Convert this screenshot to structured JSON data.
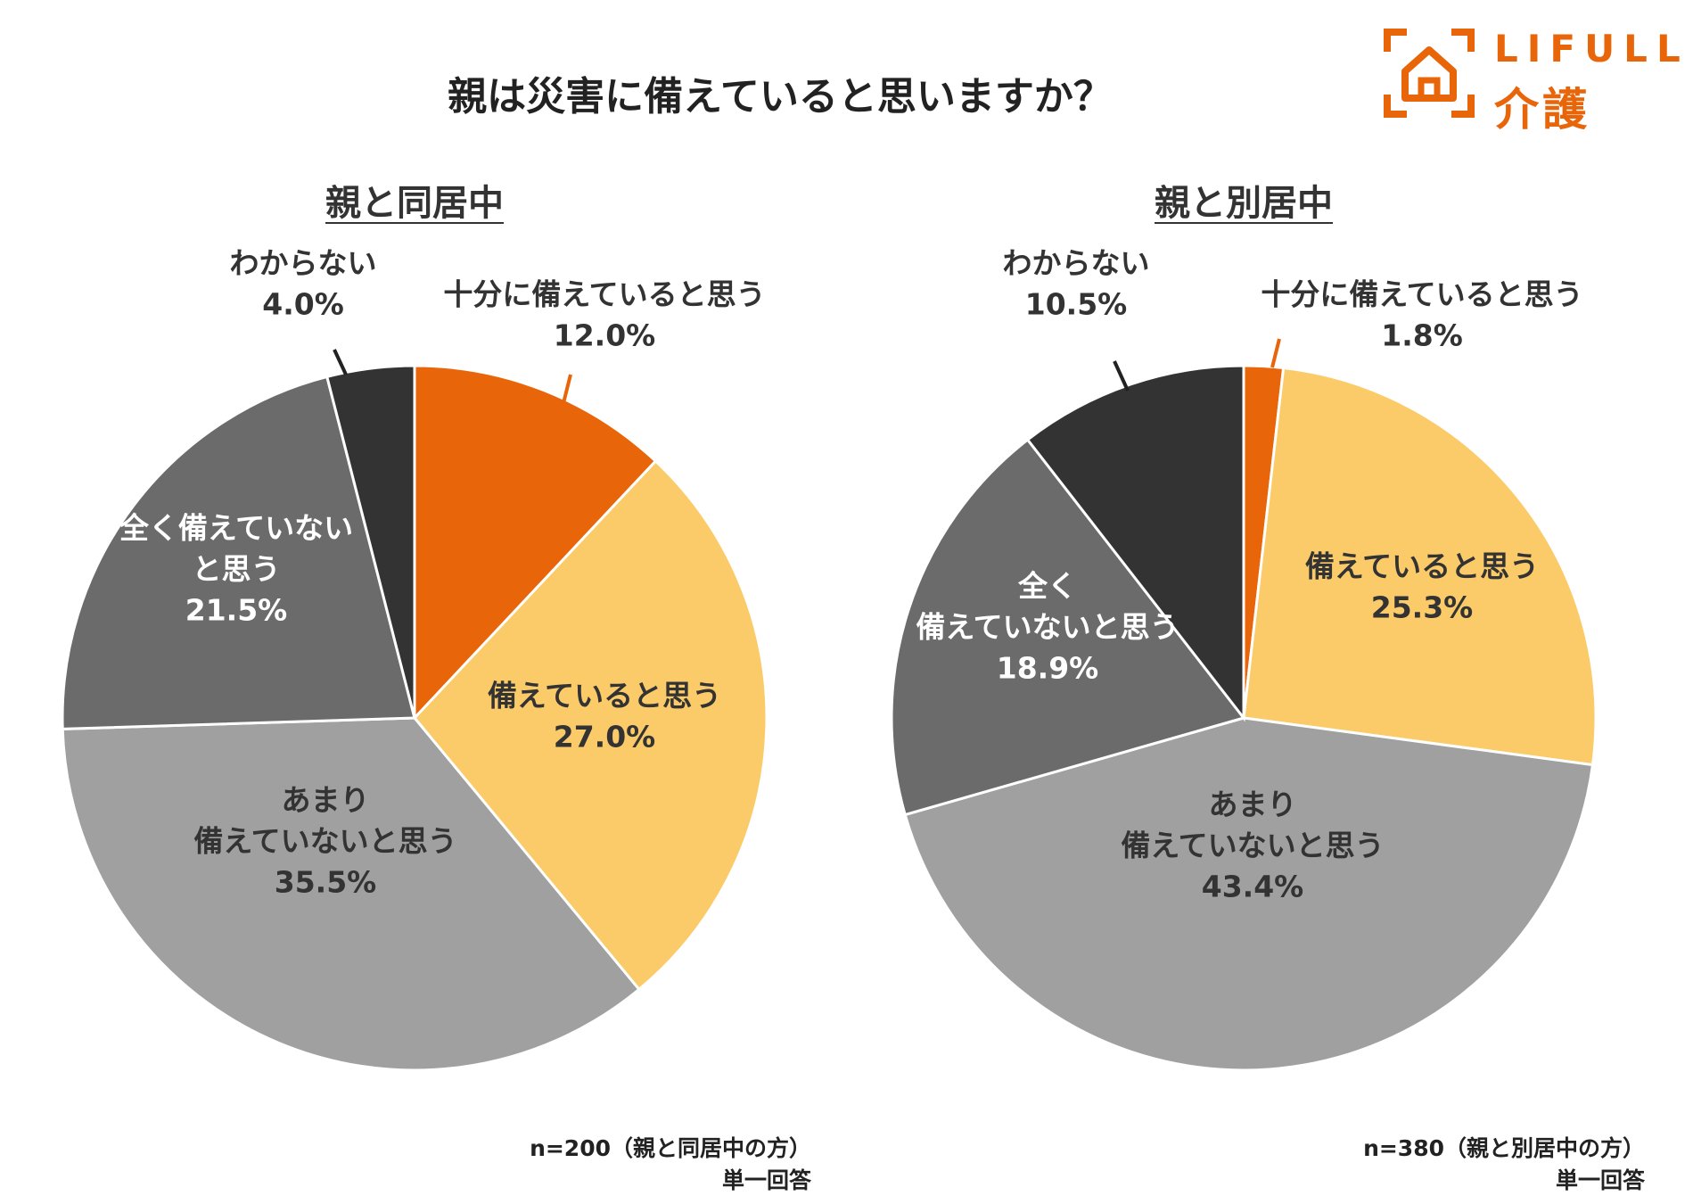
{
  "title": "親は災害に備えていると思いますか？",
  "logo": {
    "brand": "LIFULL",
    "sub": "介護",
    "icon": "house-bracket-icon"
  },
  "colors": {
    "sufficient": "#E8650A",
    "prepared": "#FBCB6A",
    "not_very": "#A0A0A0",
    "not_at_all": "#6B6B6B",
    "unknown": "#333333",
    "label_dark": "#333333"
  },
  "chart_data": [
    {
      "type": "pie",
      "title": "親と同居中",
      "start_angle": 0,
      "direction": "clockwise",
      "categories": [
        "十分に備えていると思う",
        "備えていると思う",
        "あまり備えていないと思う",
        "全く備えていないと思う",
        "わからない"
      ],
      "values": [
        12.0,
        27.0,
        35.5,
        21.5,
        4.0
      ],
      "value_labels": [
        "12.0%",
        "27.0%",
        "35.5%",
        "21.5%",
        "4.0%"
      ],
      "label_lines": [
        [
          "十分に備えていると思う"
        ],
        [
          "備えていると思う"
        ],
        [
          "あまり",
          "備えていないと思う"
        ],
        [
          "全く備えていない",
          "と思う"
        ],
        [
          "わからない"
        ]
      ],
      "note": "n=200（親と同居中の方）",
      "note2": "単一回答"
    },
    {
      "type": "pie",
      "title": "親と別居中",
      "start_angle": 0,
      "direction": "clockwise",
      "categories": [
        "十分に備えていると思う",
        "備えていると思う",
        "あまり備えていないと思う",
        "全く備えていないと思う",
        "わからない"
      ],
      "values": [
        1.8,
        25.3,
        43.4,
        18.9,
        10.5
      ],
      "value_labels": [
        "1.8%",
        "25.3%",
        "43.4%",
        "18.9%",
        "10.5%"
      ],
      "label_lines": [
        [
          "十分に備えていると思う"
        ],
        [
          "備えていると思う"
        ],
        [
          "あまり",
          "備えていないと思う"
        ],
        [
          "全く",
          "備えていないと思う"
        ],
        [
          "わからない"
        ]
      ],
      "note": "n=380（親と別居中の方）",
      "note2": "単一回答"
    }
  ]
}
